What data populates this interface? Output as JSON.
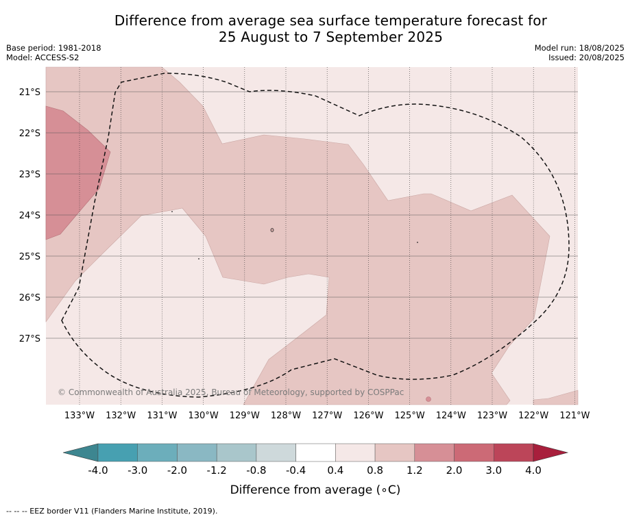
{
  "title": {
    "line1": "Difference from average sea surface temperature forecast for",
    "line2": "25 August to 7 September 2025"
  },
  "meta": {
    "base_period": "Base period: 1981-2018",
    "model": "Model: ACCESS-S2",
    "model_run": "Model run: 18/08/2025",
    "issued": "Issued: 20/08/2025"
  },
  "map": {
    "lon_labels": [
      "133°W",
      "132°W",
      "131°W",
      "130°W",
      "129°W",
      "128°W",
      "127°W",
      "126°W",
      "125°W",
      "124°W",
      "123°W",
      "122°W",
      "121°W"
    ],
    "lat_labels": [
      "21°S",
      "22°S",
      "23°S",
      "24°S",
      "25°S",
      "26°S",
      "27°S"
    ],
    "copyright": "© Commonwealth of Australia 2025, Bureau of Meteorology, supported by COSPPac",
    "colors": {
      "c04_08": "#f5e8e7",
      "c08_12": "#e6c6c3",
      "c12_20": "#d68f96"
    }
  },
  "colorbar": {
    "label": "Difference from average (∘C)",
    "ticks": [
      "-4.0",
      "-3.0",
      "-2.0",
      "-1.2",
      "-0.8",
      "-0.4",
      "0.4",
      "0.8",
      "1.2",
      "2.0",
      "3.0",
      "4.0"
    ],
    "under_color": "#3d8690",
    "over_color": "#a81f3c",
    "segment_colors": [
      "#47a0b1",
      "#6caebb",
      "#8ab8c3",
      "#a9c6cb",
      "#ced9db",
      "#ffffff",
      "#f5e8e7",
      "#e6c6c3",
      "#d68f96",
      "#cc6a76",
      "#bc4559"
    ]
  },
  "footnote": "--  --  -- EEZ border V11 (Flanders Marine Institute, 2019)."
}
